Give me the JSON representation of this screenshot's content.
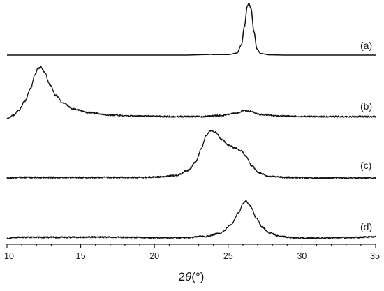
{
  "chart_data": {
    "type": "line",
    "title": "",
    "xlabel_prefix": "2",
    "xlabel_symbol": "θ",
    "xlabel_unit": "(°)",
    "ylabel": "",
    "xlim": [
      10,
      35
    ],
    "x_ticks": [
      10,
      15,
      20,
      25,
      30,
      35
    ],
    "y_axis_visible": false,
    "grid": false,
    "legend": "none",
    "series": [
      {
        "name": "(a)",
        "points": [
          [
            10,
            0.0
          ],
          [
            20,
            0.0
          ],
          [
            22,
            0.0
          ],
          [
            23.6,
            0.01
          ],
          [
            23.8,
            0.015
          ],
          [
            24.0,
            0.01
          ],
          [
            25.0,
            0.01
          ],
          [
            25.6,
            0.04
          ],
          [
            25.9,
            0.2
          ],
          [
            26.1,
            0.55
          ],
          [
            26.3,
            0.95
          ],
          [
            26.4,
            1.0
          ],
          [
            26.55,
            0.9
          ],
          [
            26.75,
            0.45
          ],
          [
            26.95,
            0.12
          ],
          [
            27.2,
            0.03
          ],
          [
            27.8,
            0.005
          ],
          [
            29,
            0.0
          ],
          [
            35,
            0.0
          ]
        ]
      },
      {
        "name": "(b)",
        "points": [
          [
            10,
            0.0
          ],
          [
            10.4,
            0.06
          ],
          [
            10.8,
            0.16
          ],
          [
            11.2,
            0.33
          ],
          [
            11.6,
            0.58
          ],
          [
            11.9,
            0.85
          ],
          [
            12.1,
            0.97
          ],
          [
            12.3,
            1.0
          ],
          [
            12.55,
            0.9
          ],
          [
            12.9,
            0.66
          ],
          [
            13.3,
            0.45
          ],
          [
            13.8,
            0.3
          ],
          [
            14.5,
            0.19
          ],
          [
            15.5,
            0.12
          ],
          [
            17,
            0.07
          ],
          [
            19,
            0.05
          ],
          [
            21,
            0.04
          ],
          [
            23,
            0.04
          ],
          [
            24.5,
            0.06
          ],
          [
            25.5,
            0.1
          ],
          [
            26.1,
            0.16
          ],
          [
            26.5,
            0.14
          ],
          [
            27.2,
            0.08
          ],
          [
            28.5,
            0.05
          ],
          [
            30,
            0.04
          ],
          [
            32,
            0.04
          ],
          [
            35,
            0.04
          ]
        ]
      },
      {
        "name": "(c)",
        "points": [
          [
            10,
            0.0
          ],
          [
            11,
            0.01
          ],
          [
            13,
            0.01
          ],
          [
            15,
            0.01
          ],
          [
            17,
            0.01
          ],
          [
            19,
            0.01
          ],
          [
            20.5,
            0.02
          ],
          [
            21.5,
            0.05
          ],
          [
            22.3,
            0.14
          ],
          [
            22.8,
            0.3
          ],
          [
            23.2,
            0.55
          ],
          [
            23.5,
            0.78
          ],
          [
            23.8,
            0.87
          ],
          [
            24.1,
            0.84
          ],
          [
            24.6,
            0.7
          ],
          [
            25.0,
            0.6
          ],
          [
            25.5,
            0.55
          ],
          [
            25.9,
            0.5
          ],
          [
            26.2,
            0.4
          ],
          [
            26.6,
            0.22
          ],
          [
            27.1,
            0.09
          ],
          [
            27.8,
            0.03
          ],
          [
            29,
            0.01
          ],
          [
            31,
            0.0
          ],
          [
            33,
            0.0
          ],
          [
            35,
            0.0
          ]
        ]
      },
      {
        "name": "(d)",
        "points": [
          [
            10,
            0.0
          ],
          [
            10.5,
            0.03
          ],
          [
            12,
            0.03
          ],
          [
            14,
            0.03
          ],
          [
            16,
            0.035
          ],
          [
            18,
            0.03
          ],
          [
            20,
            0.02
          ],
          [
            22,
            0.02
          ],
          [
            23.5,
            0.05
          ],
          [
            24.5,
            0.12
          ],
          [
            25.2,
            0.3
          ],
          [
            25.7,
            0.55
          ],
          [
            26.0,
            0.75
          ],
          [
            26.2,
            0.8
          ],
          [
            26.5,
            0.7
          ],
          [
            26.9,
            0.45
          ],
          [
            27.3,
            0.25
          ],
          [
            27.8,
            0.12
          ],
          [
            28.5,
            0.05
          ],
          [
            29.5,
            0.02
          ],
          [
            31,
            0.01
          ],
          [
            33,
            0.02
          ],
          [
            35,
            0.04
          ]
        ]
      }
    ]
  }
}
